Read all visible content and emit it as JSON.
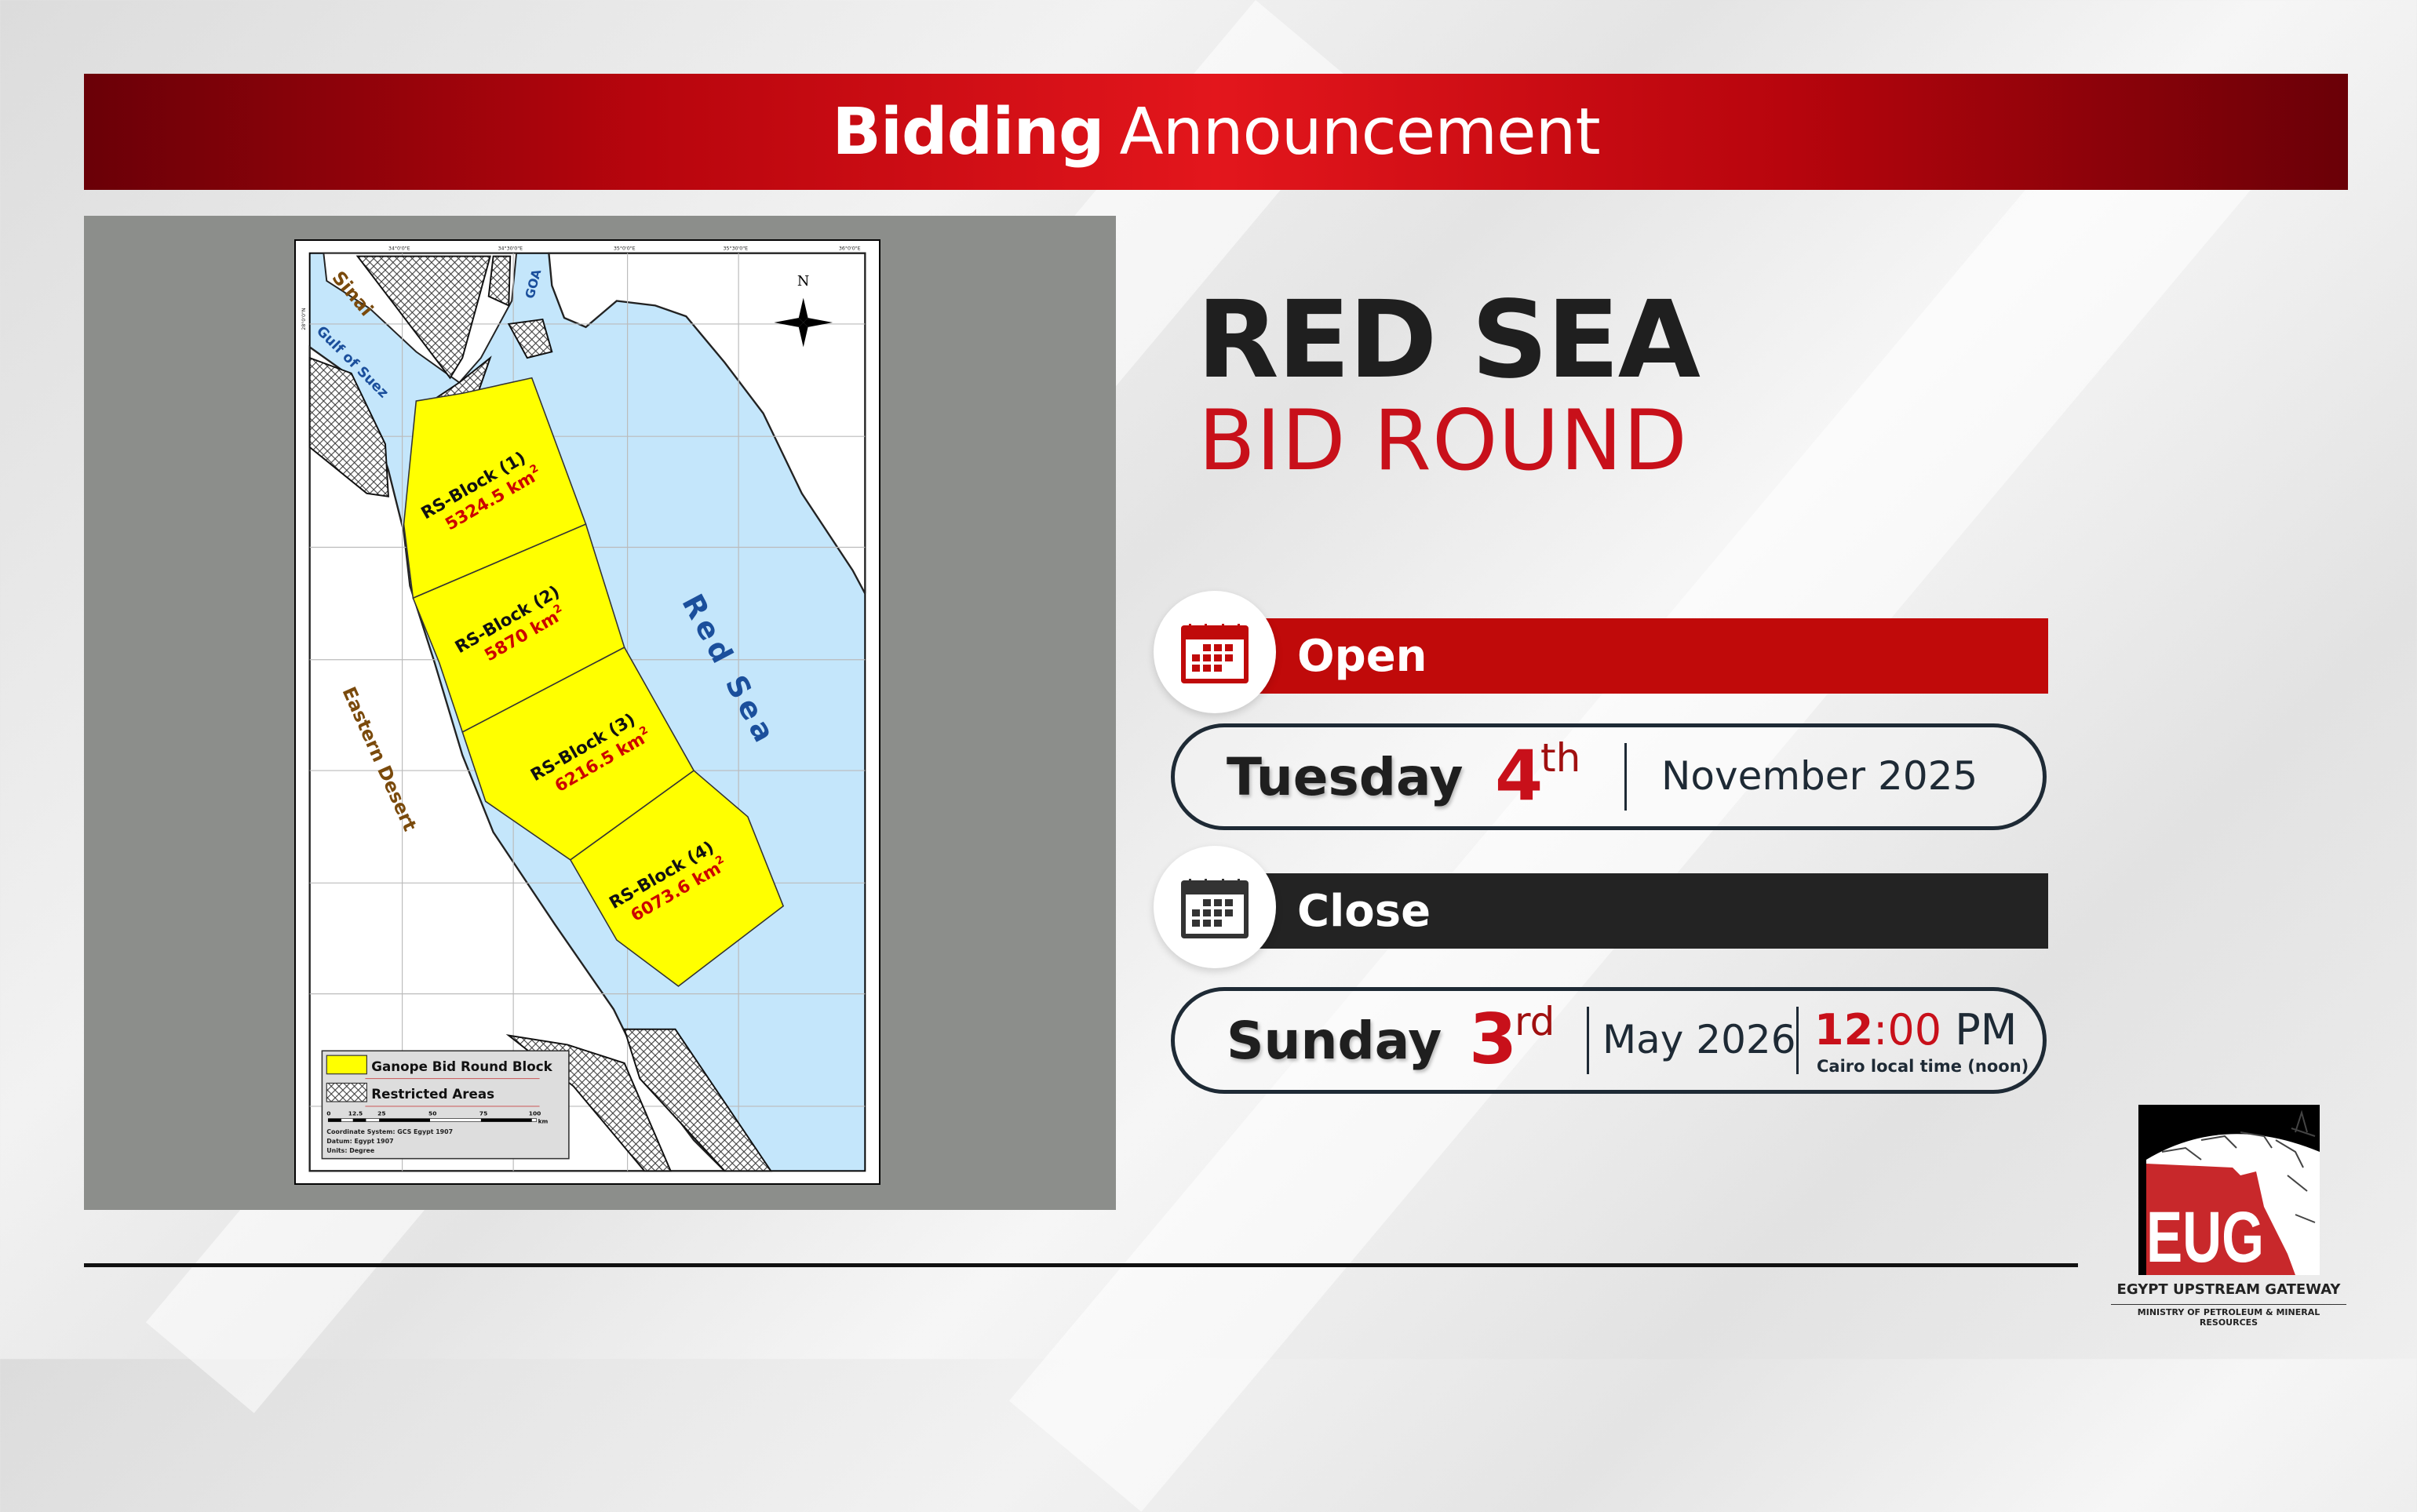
{
  "header": {
    "title_bold": "Bidding",
    "title_regular": "Announcement"
  },
  "title": {
    "line1": "RED SEA",
    "line2": "BID ROUND"
  },
  "open": {
    "label": "Open",
    "icon": "calendar-icon",
    "weekday": "Tuesday",
    "day": "4",
    "suffix": "th",
    "month_year": "November 2025"
  },
  "close": {
    "label": "Close",
    "icon": "calendar-icon",
    "weekday": "Sunday",
    "day": "3",
    "suffix": "rd",
    "month_year": "May 2026",
    "time_hour": "12",
    "time_rest": ":00",
    "ampm": "PM",
    "time_note": "Cairo local time (noon)"
  },
  "map": {
    "regions": {
      "sinai": "Sinai",
      "gulf_suez": "Gulf of Suez",
      "goa": "GOA",
      "red_sea": "Red Sea",
      "eastern_desert": "Eastern Desert",
      "north": "N"
    },
    "blocks": [
      {
        "name": "RS-Block (1)",
        "area": "5324.5 km",
        "unit_sup": "2"
      },
      {
        "name": "RS-Block (2)",
        "area": "5870 km",
        "unit_sup": "2"
      },
      {
        "name": "RS-Block (3)",
        "area": "6216.5 km",
        "unit_sup": "2"
      },
      {
        "name": "RS-Block (4)",
        "area": "6073.6 km",
        "unit_sup": "2"
      }
    ],
    "longitudes": [
      "34°0'0\"E",
      "34°30'0\"E",
      "35°0'0\"E",
      "35°30'0\"E",
      "36°0'0\"E"
    ],
    "latitude_first": "28°0'0\"N",
    "legend": {
      "block": "Ganope Bid Round Block",
      "restricted": "Restricted Areas",
      "scale_ticks": [
        "0",
        "12.5",
        "25",
        "50",
        "75",
        "100"
      ],
      "scale_unit": "km",
      "coord_system": "Coordinate System: GCS Egypt 1907",
      "datum": "Datum: Egypt 1907",
      "units": "Units: Degree"
    },
    "colors": {
      "sea": "#c4e6fb",
      "block": "#ffff00",
      "land": "#ffffff"
    }
  },
  "logo": {
    "text": "EUG",
    "name": "EGYPT UPSTREAM GATEWAY",
    "ministry": "MINISTRY OF PETROLEUM & MINERAL RESOURCES"
  },
  "colors": {
    "accent_red": "#c00a0a",
    "dark": "#232323"
  }
}
